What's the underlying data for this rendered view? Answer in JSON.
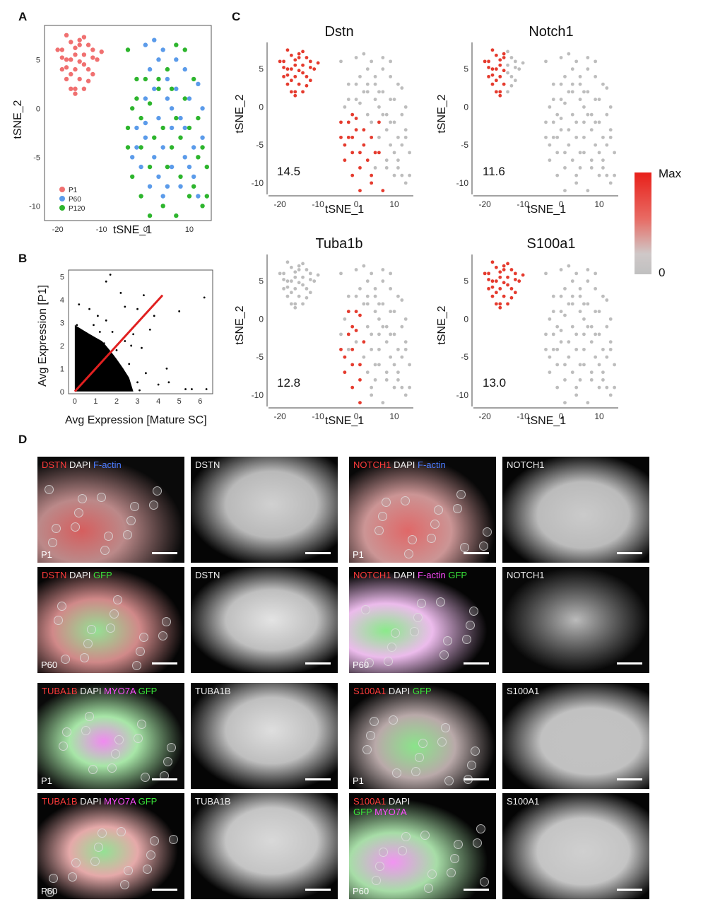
{
  "panels": {
    "A": {
      "letter": "A",
      "xlabel": "tSNE_1",
      "ylabel": "tSNE_2",
      "xticks": [
        "-20",
        "-10",
        "0",
        "10"
      ],
      "yticks": [
        "5",
        "0",
        "-5",
        "-10"
      ],
      "legend": [
        "P1",
        "P60",
        "P120"
      ]
    },
    "B": {
      "letter": "B",
      "xlabel": "Avg Expression [Mature SC]",
      "ylabel": "Avg Expression [P1]",
      "xticks": [
        "0",
        "1",
        "2",
        "3",
        "4",
        "5",
        "6"
      ],
      "yticks": [
        "0",
        "1",
        "2",
        "3",
        "4",
        "5"
      ]
    },
    "C": {
      "letter": "C",
      "plots": [
        {
          "gene": "Dstn",
          "value": "14.5",
          "xlabel": "tSNE_1",
          "ylabel": "tSNE_2"
        },
        {
          "gene": "Notch1",
          "value": "11.6",
          "xlabel": "tSNE_1",
          "ylabel": "tSNE_2"
        },
        {
          "gene": "Tuba1b",
          "value": "12.8",
          "xlabel": "tSNE_1",
          "ylabel": "tSNE_2"
        },
        {
          "gene": "S100a1",
          "value": "13.0",
          "xlabel": "tSNE_1",
          "ylabel": "tSNE_2"
        }
      ],
      "xticks": [
        "-20",
        "-10",
        "0",
        "10"
      ],
      "yticks": [
        "5",
        "0",
        "-5",
        "-10"
      ],
      "scale_max": "Max",
      "scale_min": "0"
    },
    "D": {
      "letter": "D",
      "tiles": [
        {
          "merge": [
            [
              "DSTN",
              "red"
            ],
            [
              " DAPI ",
              "white"
            ],
            [
              "F-actin",
              "blue"
            ]
          ],
          "single": "DSTN",
          "age": "P1"
        },
        {
          "merge": [
            [
              "DSTN",
              "red"
            ],
            [
              " DAPI ",
              "white"
            ],
            [
              "GFP",
              "green"
            ]
          ],
          "single": "DSTN",
          "age": "P60"
        },
        {
          "merge": [
            [
              "NOTCH1",
              "red"
            ],
            [
              " DAPI ",
              "white"
            ],
            [
              "F-actin",
              "blue"
            ]
          ],
          "single": "NOTCH1",
          "age": "P1"
        },
        {
          "merge": [
            [
              "NOTCH1",
              "red"
            ],
            [
              " DAPI ",
              "white"
            ],
            [
              "F-actin ",
              "mag"
            ],
            [
              "GFP",
              "green"
            ]
          ],
          "single": "NOTCH1",
          "age": "P60"
        },
        {
          "merge": [
            [
              "TUBA1B",
              "red"
            ],
            [
              " DAPI ",
              "white"
            ],
            [
              "MYO7A ",
              "mag"
            ],
            [
              "GFP",
              "green"
            ]
          ],
          "single": "TUBA1B",
          "age": "P1"
        },
        {
          "merge": [
            [
              "TUBA1B",
              "red"
            ],
            [
              " DAPI ",
              "white"
            ],
            [
              "MYO7A ",
              "mag"
            ],
            [
              "GFP",
              "green"
            ]
          ],
          "single": "TUBA1B",
          "age": "P60"
        },
        {
          "merge": [
            [
              "S100A1",
              "red"
            ],
            [
              " DAPI ",
              "white"
            ],
            [
              "GFP",
              "green"
            ]
          ],
          "single": "S100A1",
          "age": "P1"
        },
        {
          "merge": [
            [
              "S100A1",
              "red"
            ],
            [
              " DAPI",
              "white"
            ]
          ],
          "merge2": [
            [
              "GFP ",
              "green"
            ],
            [
              "MYO7A",
              "mag"
            ]
          ],
          "single": "S100A1",
          "age": "P60"
        }
      ]
    }
  },
  "colors": {
    "P1": "#f07070",
    "P60": "#5b9bea",
    "P120": "#2db52d",
    "expr_high": "#e53b2e",
    "expr_low": "#bdbdbd"
  },
  "chart_data": [
    {
      "type": "scatter",
      "xlabel": "tSNE_1",
      "ylabel": "tSNE_2",
      "xlim": [
        -23,
        15
      ],
      "ylim": [
        -11.5,
        8.5
      ],
      "series": [
        {
          "name": "P1",
          "points": [
            [
              -19,
              6
            ],
            [
              -18,
              7.5
            ],
            [
              -17,
              5
            ],
            [
              -16,
              4
            ],
            [
              -15,
              6.5
            ],
            [
              -14,
              5.5
            ],
            [
              -18,
              3
            ],
            [
              -16,
              2
            ],
            [
              -13,
              4
            ],
            [
              -12,
              6
            ],
            [
              -19,
              4
            ],
            [
              -17,
              3.5
            ],
            [
              -15,
              3
            ],
            [
              -14,
              2
            ],
            [
              -16,
              1.5
            ],
            [
              -11,
              5
            ],
            [
              -13,
              6.5
            ],
            [
              -15,
              7
            ],
            [
              -17,
              6.8
            ],
            [
              -18,
              5
            ],
            [
              -12,
              3.5
            ],
            [
              -14,
              4.5
            ],
            [
              -16,
              5.5
            ],
            [
              -19,
              5.2
            ],
            [
              -15,
              4.8
            ],
            [
              -13,
              2.8
            ],
            [
              -17,
              2
            ],
            [
              -18,
              4.2
            ],
            [
              -14,
              7.3
            ],
            [
              -12,
              5.2
            ],
            [
              -10,
              5.8
            ],
            [
              -16,
              6.2
            ],
            [
              -20,
              6
            ]
          ]
        },
        {
          "name": "P60",
          "points": [
            [
              0,
              6.5
            ],
            [
              2,
              7
            ],
            [
              3,
              5
            ],
            [
              1,
              4
            ],
            [
              5,
              3
            ],
            [
              7,
              2
            ],
            [
              9,
              4
            ],
            [
              10,
              1
            ],
            [
              12,
              2.5
            ],
            [
              13,
              0
            ],
            [
              8,
              -1
            ],
            [
              6,
              -2
            ],
            [
              4,
              -4
            ],
            [
              2,
              -5
            ],
            [
              0,
              -3
            ],
            [
              -1,
              -6
            ],
            [
              3,
              -7
            ],
            [
              6,
              -6
            ],
            [
              9,
              -5
            ],
            [
              11,
              -4
            ],
            [
              13,
              -3
            ],
            [
              5,
              1
            ],
            [
              2,
              2
            ],
            [
              0,
              1
            ],
            [
              -2,
              -2
            ],
            [
              -3,
              -5
            ],
            [
              1,
              -8
            ],
            [
              4,
              -9
            ],
            [
              8,
              -8
            ],
            [
              11,
              -7
            ],
            [
              12,
              -9
            ],
            [
              7,
              5
            ],
            [
              4,
              6
            ],
            [
              3,
              -1
            ],
            [
              6,
              0
            ],
            [
              9,
              -2
            ],
            [
              0,
              -1.5
            ],
            [
              -2,
              -4
            ],
            [
              10,
              -6
            ],
            [
              5,
              -8
            ]
          ]
        },
        {
          "name": "P120",
          "points": [
            [
              -4,
              6
            ],
            [
              -2,
              3
            ],
            [
              -3,
              0
            ],
            [
              -1,
              -1
            ],
            [
              1,
              0.5
            ],
            [
              3,
              2
            ],
            [
              5,
              4
            ],
            [
              7,
              6.5
            ],
            [
              9,
              6
            ],
            [
              11,
              3
            ],
            [
              12,
              -1
            ],
            [
              14,
              -6
            ],
            [
              13,
              -10
            ],
            [
              10,
              -9
            ],
            [
              7,
              -11
            ],
            [
              4,
              -10
            ],
            [
              1,
              -11
            ],
            [
              -1,
              -9
            ],
            [
              -3,
              -7
            ],
            [
              -4,
              -4
            ],
            [
              2,
              -3
            ],
            [
              4,
              -2
            ],
            [
              6,
              -4
            ],
            [
              8,
              -3
            ],
            [
              10,
              -2
            ],
            [
              12,
              -5
            ],
            [
              14,
              -9
            ],
            [
              9,
              1
            ],
            [
              6,
              2
            ],
            [
              3,
              3
            ],
            [
              0,
              3
            ],
            [
              -2,
              1
            ],
            [
              -4,
              -2
            ],
            [
              1,
              -6
            ],
            [
              5,
              -6
            ],
            [
              8,
              -7
            ],
            [
              11,
              -8
            ],
            [
              13,
              -4
            ],
            [
              -1,
              -4
            ],
            [
              7,
              -1
            ]
          ]
        }
      ]
    },
    {
      "type": "scatter",
      "xlabel": "Avg Expression [Mature SC]",
      "ylabel": "Avg Expression [P1]",
      "xlim": [
        -0.3,
        6.6
      ],
      "ylim": [
        -0.1,
        5.3
      ],
      "trend_line": [
        [
          0,
          0
        ],
        [
          4.2,
          4.2
        ]
      ],
      "series": [
        {
          "name": "",
          "points": [
            [
              0.2,
              0.3
            ],
            [
              0.4,
              0.8
            ],
            [
              0.6,
              1.2
            ],
            [
              0.8,
              0.5
            ],
            [
              1,
              1.5
            ],
            [
              1.2,
              0.9
            ],
            [
              0.3,
              1.9
            ],
            [
              0.5,
              2.3
            ],
            [
              1.4,
              2.1
            ],
            [
              1.6,
              1.3
            ],
            [
              1.8,
              2.6
            ],
            [
              2,
              1.8
            ],
            [
              2.2,
              0.6
            ],
            [
              2.4,
              2.2
            ],
            [
              0.9,
              2.9
            ],
            [
              1.1,
              3.3
            ],
            [
              0.7,
              3.6
            ],
            [
              1.5,
              3.1
            ],
            [
              2.6,
              1.2
            ],
            [
              2.8,
              2.5
            ],
            [
              3,
              0.4
            ],
            [
              3.2,
              1.9
            ],
            [
              3.4,
              0.8
            ],
            [
              3.6,
              2.7
            ],
            [
              4,
              0.3
            ],
            [
              1.5,
              4.8
            ],
            [
              1.7,
              5.1
            ],
            [
              2.4,
              3.7
            ],
            [
              2.2,
              4.3
            ],
            [
              3.3,
              4.2
            ],
            [
              4.4,
              1.0
            ],
            [
              4.5,
              0.4
            ],
            [
              5.3,
              0.1
            ],
            [
              5.6,
              0.1
            ],
            [
              6.3,
              0.1
            ],
            [
              5,
              3.5
            ],
            [
              6.2,
              4.1
            ],
            [
              3,
              3.6
            ],
            [
              0.6,
              0.1
            ],
            [
              1.3,
              0.1
            ],
            [
              1.9,
              0.1
            ],
            [
              2.5,
              0.05
            ],
            [
              3.1,
              0.05
            ],
            [
              0.1,
              2.9
            ],
            [
              0.2,
              3.8
            ],
            [
              0.4,
              1.6
            ],
            [
              1.2,
              2.6
            ],
            [
              1.7,
              0.5
            ],
            [
              2.7,
              2.0
            ],
            [
              3.8,
              3.3
            ]
          ]
        }
      ]
    }
  ]
}
